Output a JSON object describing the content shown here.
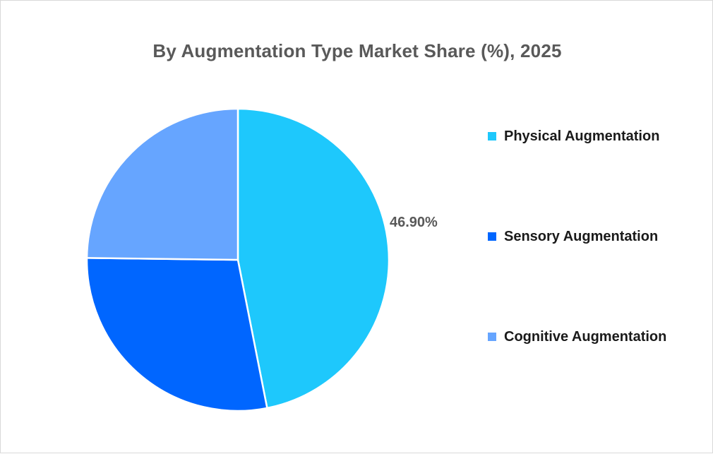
{
  "chart_data": {
    "type": "pie",
    "title": "By Augmentation Type Market Share (%), 2025",
    "categories": [
      "Physical Augmentation",
      "Sensory Augmentation",
      "Cognitive Augmentation"
    ],
    "values": [
      46.9,
      28.3,
      24.8
    ],
    "colors": [
      "#1ec8fc",
      "#0066ff",
      "#66a5ff"
    ],
    "data_labels": [
      "46.90%",
      "",
      ""
    ],
    "legend_position": "right"
  }
}
